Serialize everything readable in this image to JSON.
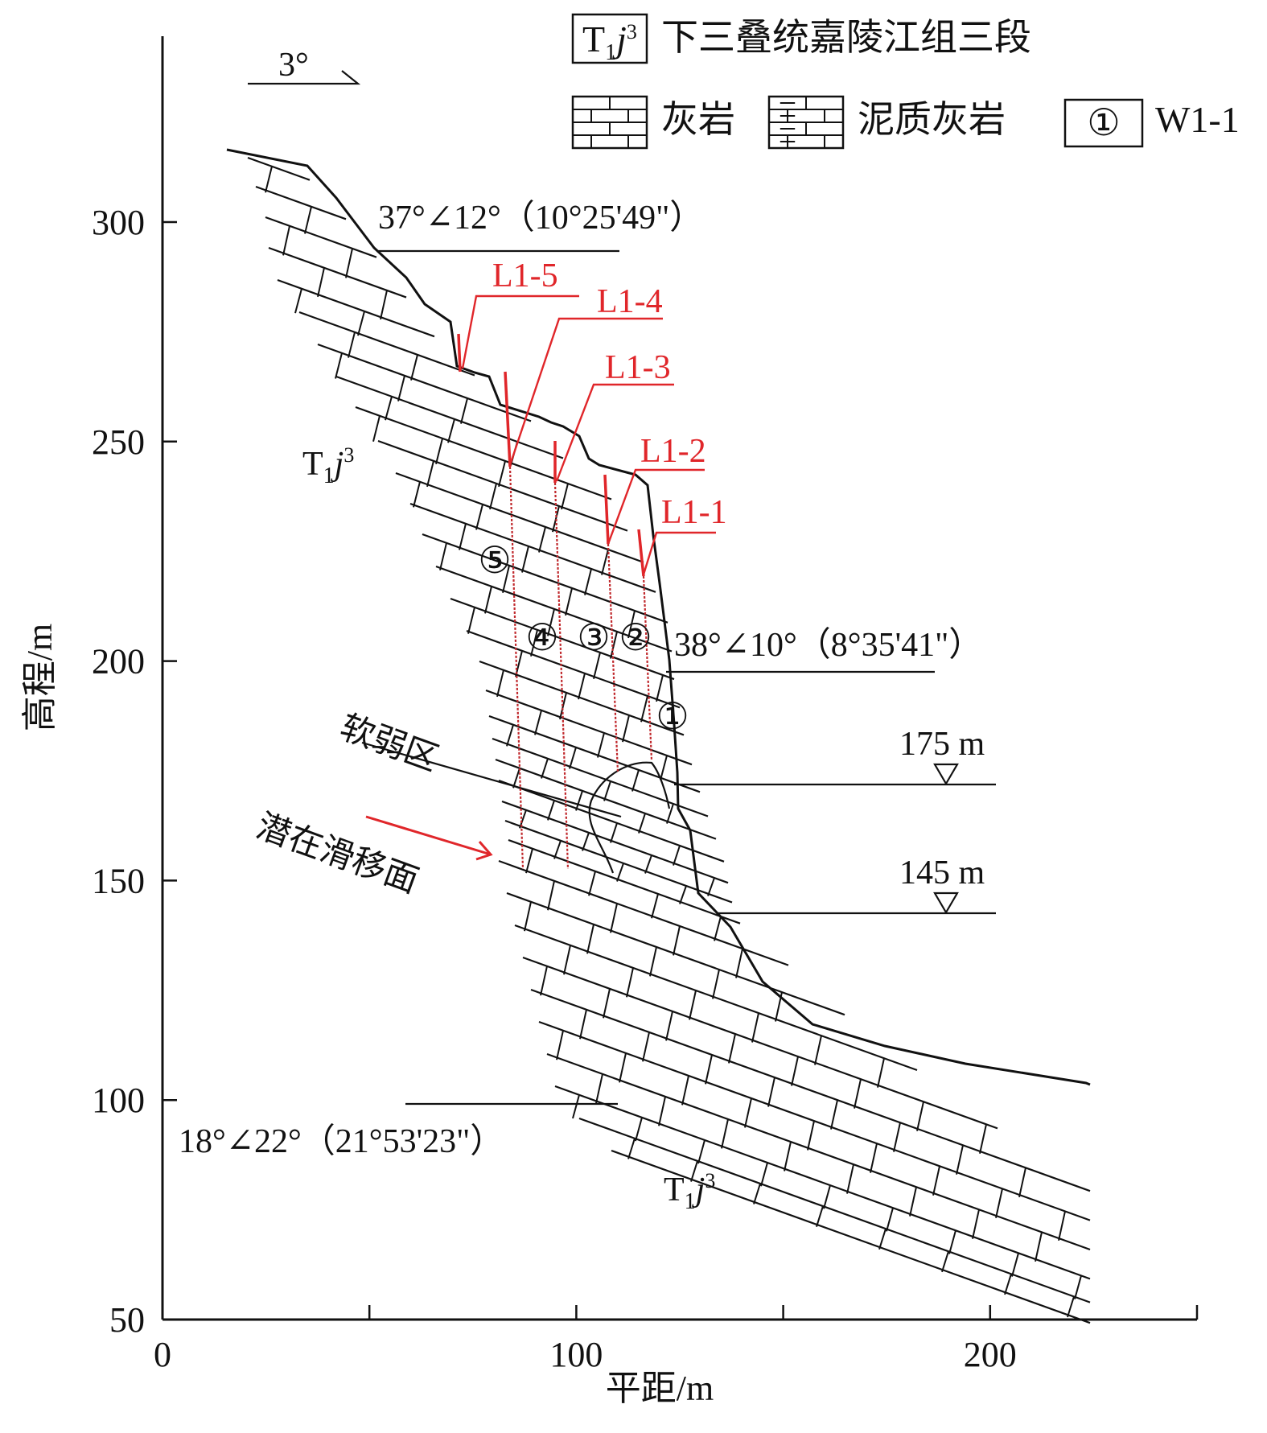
{
  "chart_data": {
    "type": "diagram",
    "x_axis": {
      "label": "平距/m",
      "ticks": [
        "0",
        "100",
        "200"
      ],
      "range": [
        0,
        250
      ]
    },
    "y_axis": {
      "label": "高程/m",
      "ticks": [
        "300",
        "250",
        "200",
        "150",
        "100",
        "50"
      ],
      "range": [
        50,
        335
      ]
    }
  },
  "legend": {
    "formation_code": "T",
    "formation_sub": "1",
    "formation_italic": "j",
    "formation_sup": "3",
    "formation_desc": "下三叠统嘉陵江组三段",
    "limestone": "灰岩",
    "marly_limestone": "泥质灰岩",
    "point_symbol": "①",
    "point_label": "W1-1"
  },
  "annotations": {
    "dip_3": "3°",
    "attitude_top": "37°∠12°（10°25'49\"）",
    "attitude_mid": "38°∠10°（8°35'41\"）",
    "attitude_bottom": "18°∠22°（21°53'23\"）",
    "water_175": "175 m",
    "water_145": "145 m",
    "weak_zone": "软弱区",
    "slip_surface": "潜在滑移面",
    "cracks": [
      "L1-5",
      "L1-4",
      "L1-3",
      "L1-2",
      "L1-1"
    ],
    "blocks": [
      "⑤",
      "④",
      "③",
      "②",
      "①"
    ]
  }
}
